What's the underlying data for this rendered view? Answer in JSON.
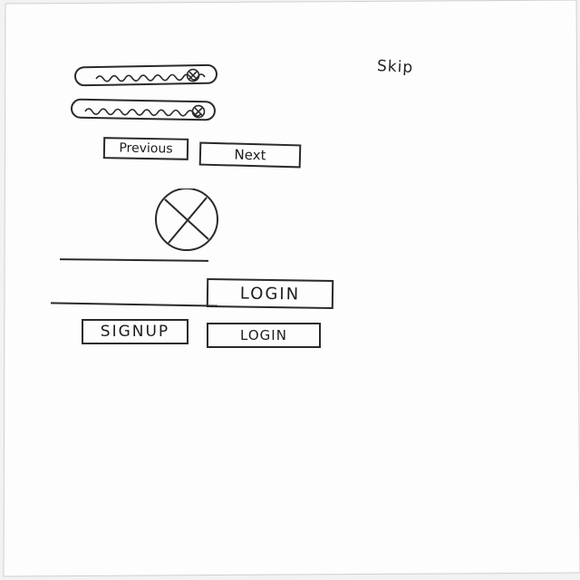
{
  "header": {
    "skip_label": "Skip"
  },
  "search_fields": [
    {
      "name": "search-input-1",
      "clear_icon": "clear-x-icon"
    },
    {
      "name": "search-input-2",
      "clear_icon": "clear-x-icon"
    }
  ],
  "pager": {
    "previous_label": "Previous",
    "next_label": "Next"
  },
  "image_placeholder": {
    "icon": "image-placeholder-icon"
  },
  "form": {
    "login_primary_label": "LOGIN",
    "signup_label": "SIGNUP",
    "login_secondary_label": "LOGIN"
  }
}
